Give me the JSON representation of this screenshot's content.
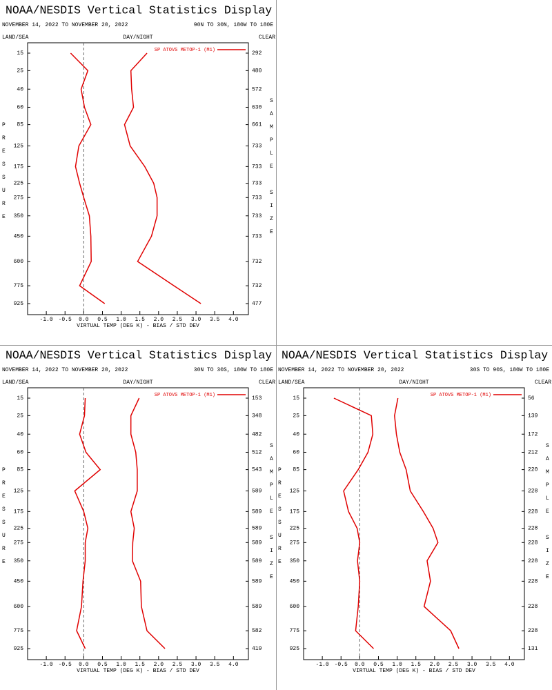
{
  "chart_data": [
    {
      "type": "line",
      "title": "NOAA/NESDIS Vertical Statistics Display",
      "subtitle": "NOVEMBER 14, 2022 TO NOVEMBER 20, 2022",
      "region": "90N TO 30N, 180W TO 180E",
      "land_sea": "LAND/SEA",
      "day_night": "DAY/NIGHT",
      "sky": "CLEAR",
      "y_label": "PRESSURE",
      "y2_label": "SAMPLE SIZE",
      "x_label": "VIRTUAL TEMP (DEG K) - BIAS / STD DEV",
      "categories": [
        15,
        25,
        40,
        60,
        85,
        125,
        175,
        225,
        275,
        350,
        450,
        600,
        775,
        925
      ],
      "sample_size": [
        292,
        480,
        572,
        630,
        661,
        733,
        733,
        733,
        733,
        733,
        733,
        732,
        732,
        477
      ],
      "series": [
        {
          "name": "SP ATOVS METOP-1 (M1)",
          "color": "#e00000",
          "values": [
            -0.35,
            0.11,
            -0.07,
            0.02,
            0.19,
            -0.13,
            -0.22,
            -0.11,
            0.0,
            0.15,
            0.19,
            0.2,
            -0.11,
            0.56
          ]
        },
        {
          "color": "#e00000",
          "values": [
            1.69,
            1.26,
            1.28,
            1.33,
            1.09,
            1.24,
            1.63,
            1.87,
            1.96,
            1.96,
            1.81,
            1.44,
            2.41,
            3.13
          ]
        }
      ],
      "xlim": [
        -1.5,
        4.4
      ],
      "xticks": [
        {
          "value": -1,
          "label": "-1.0"
        },
        {
          "value": -0.5,
          "label": "-0.5"
        },
        {
          "value": 0,
          "label": "0.0"
        },
        {
          "value": 0.5,
          "label": "0.5"
        },
        {
          "value": 1,
          "label": "1.0"
        },
        {
          "value": 1.5,
          "label": "1.5"
        },
        {
          "value": 2,
          "label": "2.0"
        },
        {
          "value": 2.5,
          "label": "2.5"
        },
        {
          "value": 3,
          "label": "3.0"
        },
        {
          "value": 3.5,
          "label": "3.5"
        },
        {
          "value": 4,
          "label": "4.0"
        }
      ]
    },
    {
      "type": "line",
      "title": "NOAA/NESDIS Vertical Statistics Display",
      "subtitle": "NOVEMBER 14, 2022 TO NOVEMBER 20, 2022",
      "region": "30N TO 30S, 180W TO 180E",
      "land_sea": "LAND/SEA",
      "day_night": "DAY/NIGHT",
      "sky": "CLEAR",
      "y_label": "PRESSURE",
      "y2_label": "SAMPLE SIZE",
      "x_label": "VIRTUAL TEMP (DEG K) - BIAS / STD DEV",
      "categories": [
        15,
        25,
        40,
        60,
        85,
        125,
        175,
        225,
        275,
        350,
        450,
        600,
        775,
        925
      ],
      "sample_size": [
        153,
        348,
        482,
        512,
        543,
        589,
        589,
        589,
        589,
        589,
        589,
        589,
        582,
        419
      ],
      "series": [
        {
          "name": "SP ATOVS METOP-1 (M1)",
          "color": "#e00000",
          "values": [
            0.04,
            0.02,
            -0.11,
            0.06,
            0.44,
            -0.24,
            0.0,
            0.11,
            0.04,
            0.04,
            -0.02,
            -0.06,
            -0.19,
            0.04
          ]
        },
        {
          "color": "#e00000",
          "values": [
            1.48,
            1.26,
            1.26,
            1.39,
            1.43,
            1.43,
            1.26,
            1.35,
            1.31,
            1.3,
            1.52,
            1.54,
            1.69,
            2.17
          ]
        }
      ],
      "xlim": [
        -1.5,
        4.4
      ],
      "xticks": [
        {
          "value": -1,
          "label": "-1.0"
        },
        {
          "value": -0.5,
          "label": "-0.5"
        },
        {
          "value": 0,
          "label": "0.0"
        },
        {
          "value": 0.5,
          "label": "0.5"
        },
        {
          "value": 1,
          "label": "1.0"
        },
        {
          "value": 1.5,
          "label": "1.5"
        },
        {
          "value": 2,
          "label": "2.0"
        },
        {
          "value": 2.5,
          "label": "2.5"
        },
        {
          "value": 3,
          "label": "3.0"
        },
        {
          "value": 3.5,
          "label": "3.5"
        },
        {
          "value": 4,
          "label": "4.0"
        }
      ]
    },
    {
      "type": "line",
      "title": "NOAA/NESDIS Vertical Statistics Display",
      "subtitle": "NOVEMBER 14, 2022 TO NOVEMBER 20, 2022",
      "region": "30S TO 90S, 180W TO 180E",
      "land_sea": "LAND/SEA",
      "day_night": "DAY/NIGHT",
      "sky": "CLEAR",
      "y_label": "PRESSURE",
      "y2_label": "SAMPLE SIZE",
      "x_label": "VIRTUAL TEMP (DEG K) - BIAS / STD DEV",
      "categories": [
        15,
        25,
        40,
        60,
        85,
        125,
        175,
        225,
        275,
        350,
        450,
        600,
        775,
        925
      ],
      "sample_size": [
        56,
        139,
        172,
        212,
        220,
        228,
        228,
        228,
        228,
        228,
        228,
        228,
        228,
        131
      ],
      "series": [
        {
          "name": "SP ATOVS METOP-1 (M1)",
          "color": "#e00000",
          "values": [
            -0.69,
            0.31,
            0.35,
            0.22,
            -0.04,
            -0.43,
            -0.3,
            -0.07,
            0.0,
            -0.06,
            0.0,
            -0.04,
            -0.11,
            0.37
          ]
        },
        {
          "color": "#e00000",
          "values": [
            1.02,
            0.93,
            0.98,
            1.07,
            1.24,
            1.35,
            1.7,
            1.96,
            2.09,
            1.8,
            1.89,
            1.72,
            2.43,
            2.65
          ]
        }
      ],
      "xlim": [
        -1.5,
        4.4
      ],
      "xticks": [
        {
          "value": -1,
          "label": "-1.0"
        },
        {
          "value": -0.5,
          "label": "-0.5"
        },
        {
          "value": 0,
          "label": "0.0"
        },
        {
          "value": 0.5,
          "label": "0.5"
        },
        {
          "value": 1,
          "label": "1.0"
        },
        {
          "value": 1.5,
          "label": "1.5"
        },
        {
          "value": 2,
          "label": "2.0"
        },
        {
          "value": 2.5,
          "label": "2.5"
        },
        {
          "value": 3,
          "label": "3.0"
        },
        {
          "value": 3.5,
          "label": "3.5"
        },
        {
          "value": 4,
          "label": "4.0"
        }
      ]
    }
  ]
}
